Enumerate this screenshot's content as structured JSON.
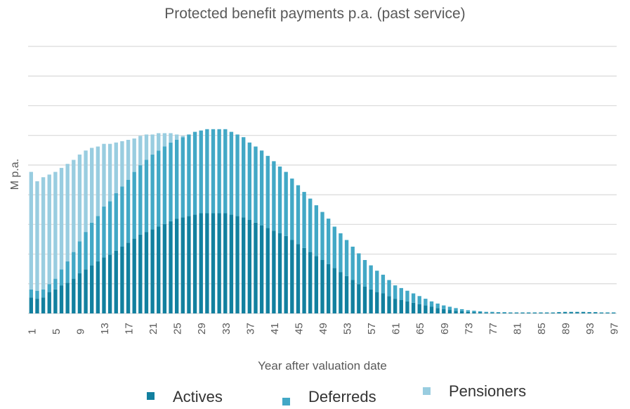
{
  "chart_data": {
    "type": "bar",
    "stacked": true,
    "title": "Protected benefit payments p.a. (past service)",
    "xlabel": "Year after valuation date",
    "ylabel": "M p.a.",
    "x": [
      1,
      2,
      3,
      4,
      5,
      6,
      7,
      8,
      9,
      10,
      11,
      12,
      13,
      14,
      15,
      16,
      17,
      18,
      19,
      20,
      21,
      22,
      23,
      24,
      25,
      26,
      27,
      28,
      29,
      30,
      31,
      32,
      33,
      34,
      35,
      36,
      37,
      38,
      39,
      40,
      41,
      42,
      43,
      44,
      45,
      46,
      47,
      48,
      49,
      50,
      51,
      52,
      53,
      54,
      55,
      56,
      57,
      58,
      59,
      60,
      61,
      62,
      63,
      64,
      65,
      66,
      67,
      68,
      69,
      70,
      71,
      72,
      73,
      74,
      75,
      76,
      77,
      78,
      79,
      80,
      81,
      82,
      83,
      84,
      85,
      86,
      87,
      88,
      89,
      90,
      91,
      92,
      93,
      94,
      95,
      96,
      97
    ],
    "x_tick_labels": [
      "1",
      "5",
      "9",
      "13",
      "17",
      "21",
      "25",
      "29",
      "33",
      "37",
      "41",
      "45",
      "49",
      "53",
      "57",
      "61",
      "65",
      "69",
      "73",
      "77",
      "81",
      "85",
      "89",
      "93",
      "97"
    ],
    "ylim": [
      0,
      100
    ],
    "grid": true,
    "y_tick_labels_shown": false,
    "legend_position": "bottom",
    "series": [
      {
        "name": "Actives",
        "color": "#12809f",
        "values": [
          6,
          5.5,
          6,
          8,
          9,
          10.5,
          11.5,
          13,
          15,
          16.5,
          18,
          19.5,
          21,
          22,
          23.5,
          25,
          26.5,
          28,
          29.5,
          30.5,
          31.5,
          32.5,
          33.5,
          34.5,
          35.5,
          36,
          36.5,
          37,
          37.5,
          37.5,
          37.5,
          37.5,
          37.5,
          37,
          36.5,
          36,
          35,
          34,
          33,
          32,
          31,
          30,
          29,
          27.5,
          26,
          24.5,
          23,
          21.5,
          20,
          18.5,
          17,
          15.5,
          14,
          12.5,
          11,
          10,
          9,
          8,
          7.5,
          6.5,
          5.5,
          5,
          4.5,
          4,
          3.5,
          3,
          2.5,
          2,
          1.6,
          1.3,
          1,
          0.8,
          0.6,
          0.5,
          0.4,
          0.3,
          0.3,
          0.3,
          0.3,
          0.3,
          0.3,
          0.3,
          0.3,
          0.3,
          0.3,
          0.3,
          0.3,
          0.4,
          0.5,
          0.5,
          0.5,
          0.5,
          0.4,
          0.4,
          0.3,
          0.3,
          0.3
        ]
      },
      {
        "name": "Deferreds",
        "color": "#42a8c6",
        "values": [
          3,
          3,
          3,
          3,
          4,
          6,
          8,
          10,
          12,
          14,
          16,
          17,
          19,
          20,
          21.5,
          22.5,
          23.5,
          25,
          26,
          27,
          28,
          28.5,
          29,
          29.5,
          29.5,
          30,
          30.5,
          31,
          31,
          31.5,
          31.5,
          31.5,
          31.5,
          31,
          30.5,
          30,
          29,
          28.5,
          28,
          27,
          26,
          25,
          24,
          23,
          22,
          21,
          20,
          19,
          18,
          17,
          15.5,
          14.5,
          13.5,
          12.5,
          11.5,
          10,
          9,
          8,
          7,
          6,
          5,
          4.5,
          4,
          3.5,
          3,
          2.5,
          2,
          1.7,
          1.4,
          1.2,
          1,
          0.8,
          0.6,
          0.5,
          0.4,
          0.3,
          0.3,
          0.2,
          0.2,
          0.1,
          0.1,
          0.1,
          0.1,
          0.1,
          0.1,
          0.1,
          0.1,
          0.1,
          0.1,
          0.1,
          0.1,
          0.1,
          0.1,
          0.1,
          0.1,
          0.1,
          0.1
        ]
      },
      {
        "name": "Pensioners",
        "color": "#99cde0",
        "values": [
          44,
          41,
          42,
          41,
          40,
          38,
          36.5,
          34.5,
          32.5,
          30.5,
          28,
          26,
          23.5,
          21.5,
          19,
          17,
          15,
          12.5,
          11,
          9.5,
          7.5,
          6.5,
          5,
          3.5,
          2,
          0.5,
          0,
          0,
          0,
          0,
          0,
          0,
          0,
          0,
          0,
          0,
          0,
          0,
          0,
          0,
          0,
          0,
          0,
          0,
          0,
          0,
          0,
          0,
          0,
          0,
          0,
          0,
          0,
          0,
          0,
          0,
          0,
          0,
          0,
          0,
          0,
          0,
          0,
          0,
          0,
          0,
          0,
          0,
          0,
          0,
          0,
          0,
          0,
          0,
          0,
          0,
          0,
          0,
          0,
          0,
          0,
          0,
          0,
          0,
          0,
          0,
          0,
          0,
          0,
          0,
          0,
          0,
          0,
          0,
          0,
          0,
          0
        ]
      }
    ]
  }
}
